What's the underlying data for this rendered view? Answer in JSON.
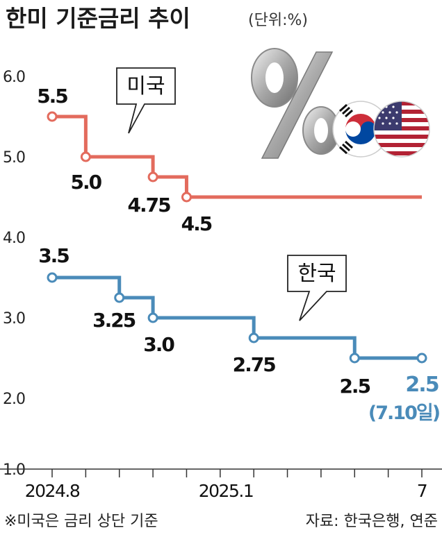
{
  "title": "한미 기준금리 추이",
  "unit": "(단위:%)",
  "note_left": "※미국은 금리 상단 기준",
  "note_right": "자료: 한국은행, 연준",
  "colors": {
    "us": "#e36b5d",
    "kr": "#4a8bb9",
    "axis": "#333333"
  },
  "icons": [
    "percent-sign-icon",
    "korea-flag-icon",
    "usa-flag-icon"
  ],
  "chart_data": {
    "type": "line",
    "step": true,
    "ylim": [
      1.0,
      6.0
    ],
    "yticks": [
      "1.0",
      "2.0",
      "3.0",
      "4.0",
      "5.0",
      "6.0"
    ],
    "x_ticks": [
      "2024.8",
      "2025.1",
      "7"
    ],
    "series": [
      {
        "name": "미국",
        "key": "us",
        "points": [
          {
            "x": "2024.8",
            "y": 5.5,
            "label": "5.5"
          },
          {
            "x": "2024.9",
            "y": 5.0,
            "label": "5.0"
          },
          {
            "x": "2024.11",
            "y": 4.75,
            "label": "4.75"
          },
          {
            "x": "2024.12",
            "y": 4.5,
            "label": "4.5"
          },
          {
            "x": "2025.7",
            "y": 4.5
          }
        ]
      },
      {
        "name": "한국",
        "key": "kr",
        "points": [
          {
            "x": "2024.8",
            "y": 3.5,
            "label": "3.5"
          },
          {
            "x": "2024.10",
            "y": 3.25,
            "label": "3.25"
          },
          {
            "x": "2024.11",
            "y": 3.0,
            "label": "3.0"
          },
          {
            "x": "2025.2",
            "y": 2.75,
            "label": "2.75"
          },
          {
            "x": "2025.5",
            "y": 2.5,
            "label": "2.5"
          },
          {
            "x": "2025.7",
            "y": 2.5,
            "label": "2.5",
            "sublabel": "(7.10일)"
          }
        ]
      }
    ]
  }
}
